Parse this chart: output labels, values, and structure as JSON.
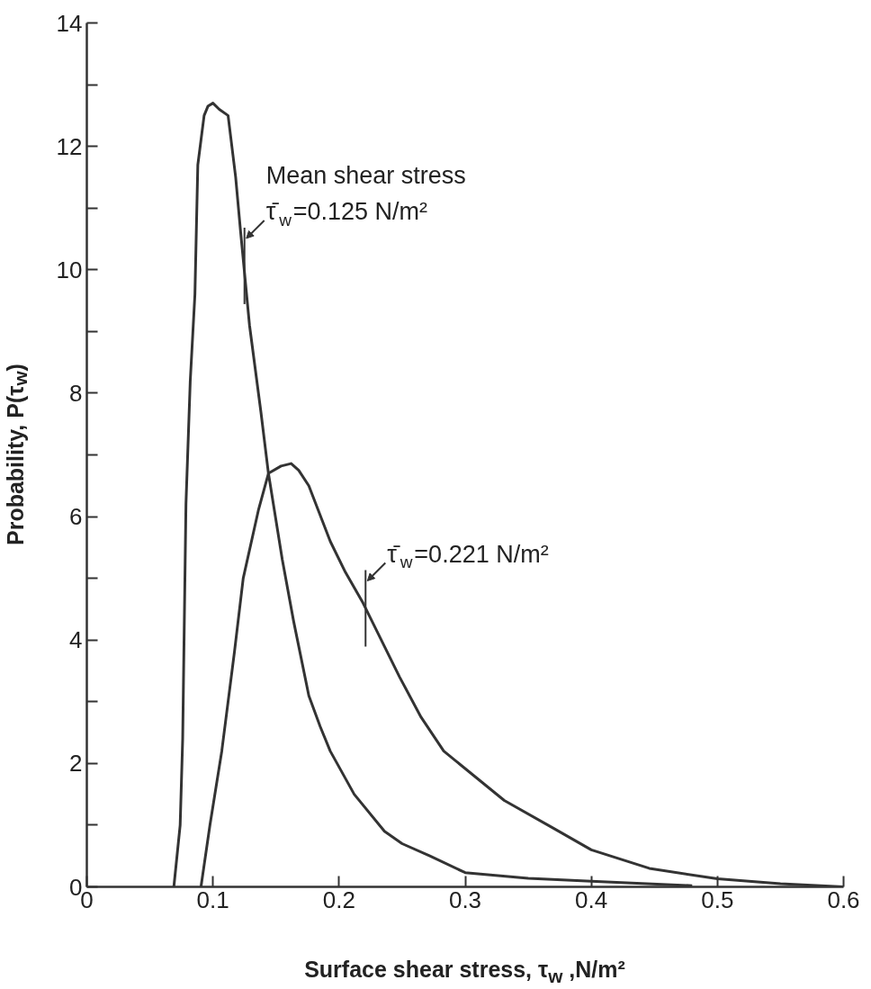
{
  "chart_data": {
    "type": "line",
    "xlabel": "Surface shear stress, τ$_{w}$ ,N/m²",
    "ylabel": "Probability, P(τ$_{w}$)",
    "xlim": [
      0,
      0.6
    ],
    "ylim": [
      0,
      14
    ],
    "xticks": [
      0,
      0.1,
      0.2,
      0.3,
      0.4,
      0.5,
      0.6
    ],
    "yticks": [
      0,
      {
        "value": 1,
        "label": null
      },
      2,
      {
        "value": 3,
        "label": null
      },
      4,
      {
        "value": 5,
        "label": null
      },
      6,
      {
        "value": 7,
        "label": null
      },
      8,
      {
        "value": 9,
        "label": null
      },
      10,
      {
        "value": 11,
        "label": null
      },
      12,
      {
        "value": 13,
        "label": null
      },
      14
    ],
    "grid": false,
    "series": [
      {
        "color": "#333333",
        "x": [
          0.069,
          0.074,
          0.076,
          0.0786,
          0.082,
          0.0857,
          0.088,
          0.093,
          0.096,
          0.1,
          0.105,
          0.112,
          0.118,
          0.122,
          0.129,
          0.138,
          0.144,
          0.155,
          0.164,
          0.176,
          0.185,
          0.193,
          0.212,
          0.236,
          0.25,
          0.272,
          0.3,
          0.35,
          0.4,
          0.48
        ],
        "values": [
          0,
          1.0,
          2.4,
          6.2,
          8.2,
          9.6,
          11.7,
          12.5,
          12.65,
          12.7,
          12.6,
          12.5,
          11.5,
          10.6,
          9.1,
          7.7,
          6.7,
          5.3,
          4.3,
          3.1,
          2.6,
          2.2,
          1.5,
          0.9,
          0.7,
          0.5,
          0.23,
          0.14,
          0.09,
          0.02
        ]
      },
      {
        "color": "#333333",
        "x": [
          0.0905,
          0.0976,
          0.107,
          0.117,
          0.124,
          0.136,
          0.144,
          0.154,
          0.162,
          0.168,
          0.176,
          0.193,
          0.205,
          0.219,
          0.248,
          0.265,
          0.283,
          0.331,
          0.37,
          0.4,
          0.446,
          0.5,
          0.55,
          0.6
        ],
        "values": [
          0,
          1.0,
          2.2,
          3.8,
          5.0,
          6.1,
          6.7,
          6.82,
          6.86,
          6.75,
          6.5,
          5.6,
          5.1,
          4.6,
          3.4,
          2.75,
          2.2,
          1.4,
          0.95,
          0.6,
          0.3,
          0.13,
          0.05,
          0
        ]
      }
    ],
    "annotations": [
      "Mean shear stress",
      {
        "text": "τ̄$_{w}$=0.125 N/m²",
        "x": 0.125,
        "y": 10.1
      },
      {
        "text": "τ̄$_{w}$=0.221 N/m²",
        "x": 0.221,
        "y": 4.55
      }
    ]
  }
}
